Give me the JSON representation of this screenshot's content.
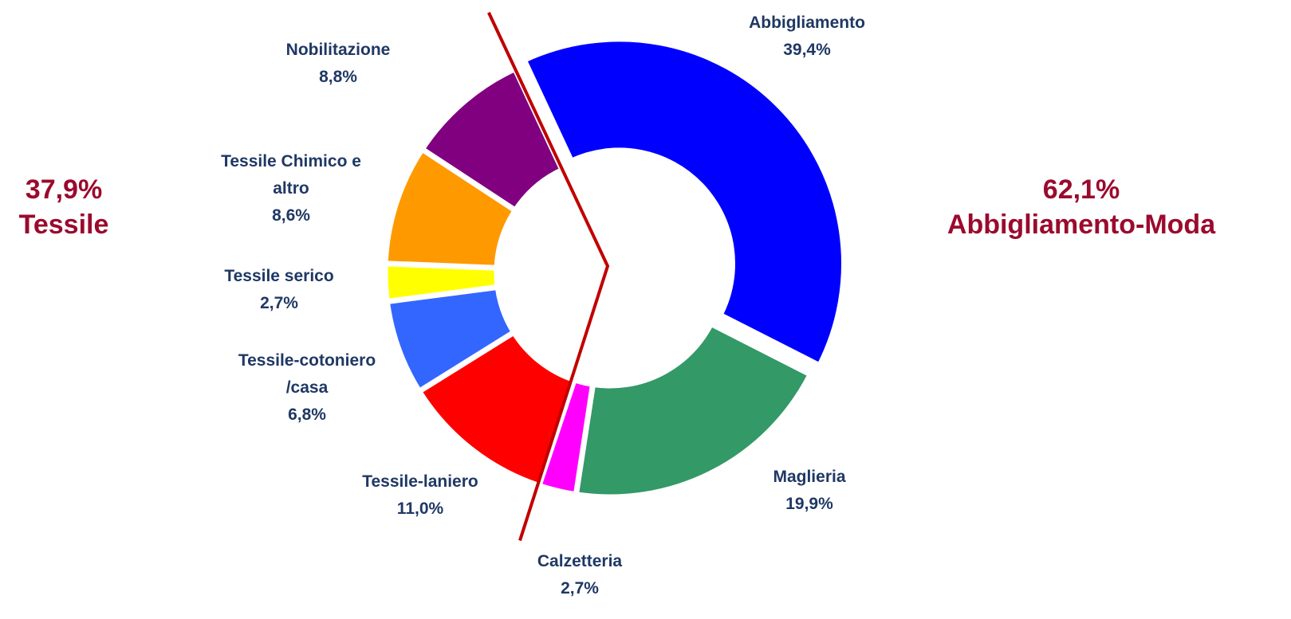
{
  "chart_data": {
    "type": "donut",
    "categories": [
      "Abbigliamento",
      "Maglieria",
      "Calzetteria",
      "Tessile-laniero",
      "Tessile-cotoniero /casa",
      "Tessile serico",
      "Tessile Chimico e altro",
      "Nobilitazione"
    ],
    "values": [
      39.4,
      19.9,
      2.7,
      11.0,
      6.8,
      2.7,
      8.6,
      8.8
    ],
    "value_labels": [
      "39,4%",
      "19,9%",
      "2,7%",
      "11,0%",
      "6,8%",
      "2,7%",
      "8,6%",
      "8,8%"
    ],
    "colors": [
      "#0000ff",
      "#339966",
      "#ff00ff",
      "#ff0000",
      "#3366ff",
      "#ffff00",
      "#ff9900",
      "#800080"
    ],
    "groups": [
      {
        "name": "Tessile",
        "value": 37.9,
        "value_label": "37,9%"
      },
      {
        "name": "Abbigliamento-Moda",
        "value": 62.1,
        "value_label": "62,1%"
      }
    ]
  }
}
